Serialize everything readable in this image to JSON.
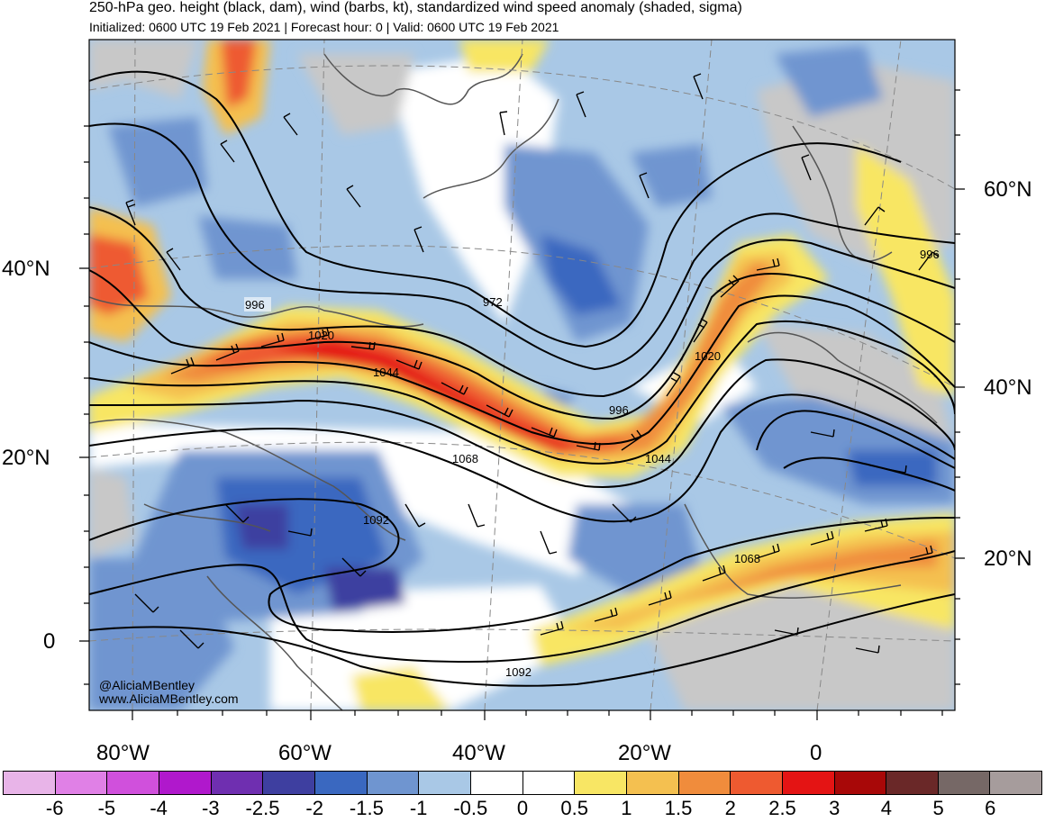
{
  "header": {
    "title": "250-hPa geo. height (black, dam), wind (barbs, kt), standardized wind speed anomaly (shaded, sigma)",
    "subtitle": "Initialized: 0600 UTC 19 Feb 2021 | Forecast hour: 0 | Valid: 0600 UTC 19 Feb 2021"
  },
  "map": {
    "left_lat_labels": [
      "40°N",
      "20°N",
      "0"
    ],
    "right_lat_labels": [
      "60°N",
      "40°N",
      "20°N"
    ],
    "lon_labels": [
      "80°W",
      "60°W",
      "40°W",
      "20°W",
      "0"
    ],
    "contour_labels": [
      "996",
      "972",
      "1020",
      "1044",
      "996",
      "1020",
      "996",
      "1068",
      "1044",
      "1092",
      "1068",
      "1092"
    ],
    "credits": [
      "@AliciaMBentley",
      "www.AliciaMBentley.com"
    ]
  },
  "colorbar": {
    "labels": [
      "-6",
      "-5",
      "-4",
      "-3",
      "-2.5",
      "-2",
      "-1.5",
      "-1",
      "-0.5",
      "0",
      "0.5",
      "1",
      "1.5",
      "2",
      "2.5",
      "3",
      "4",
      "5",
      "6"
    ],
    "colors": [
      "#e8b4e8",
      "#e080e6",
      "#d050dc",
      "#b018cc",
      "#6f2fb0",
      "#3e3fa0",
      "#3a68c0",
      "#6f95d0",
      "#a9c8e6",
      "#ffffff",
      "#ffffff",
      "#f8e664",
      "#f4c050",
      "#f08c3c",
      "#ee5a30",
      "#e41414",
      "#a80808",
      "#6a2828",
      "#766866",
      "#a69c9c"
    ]
  }
}
